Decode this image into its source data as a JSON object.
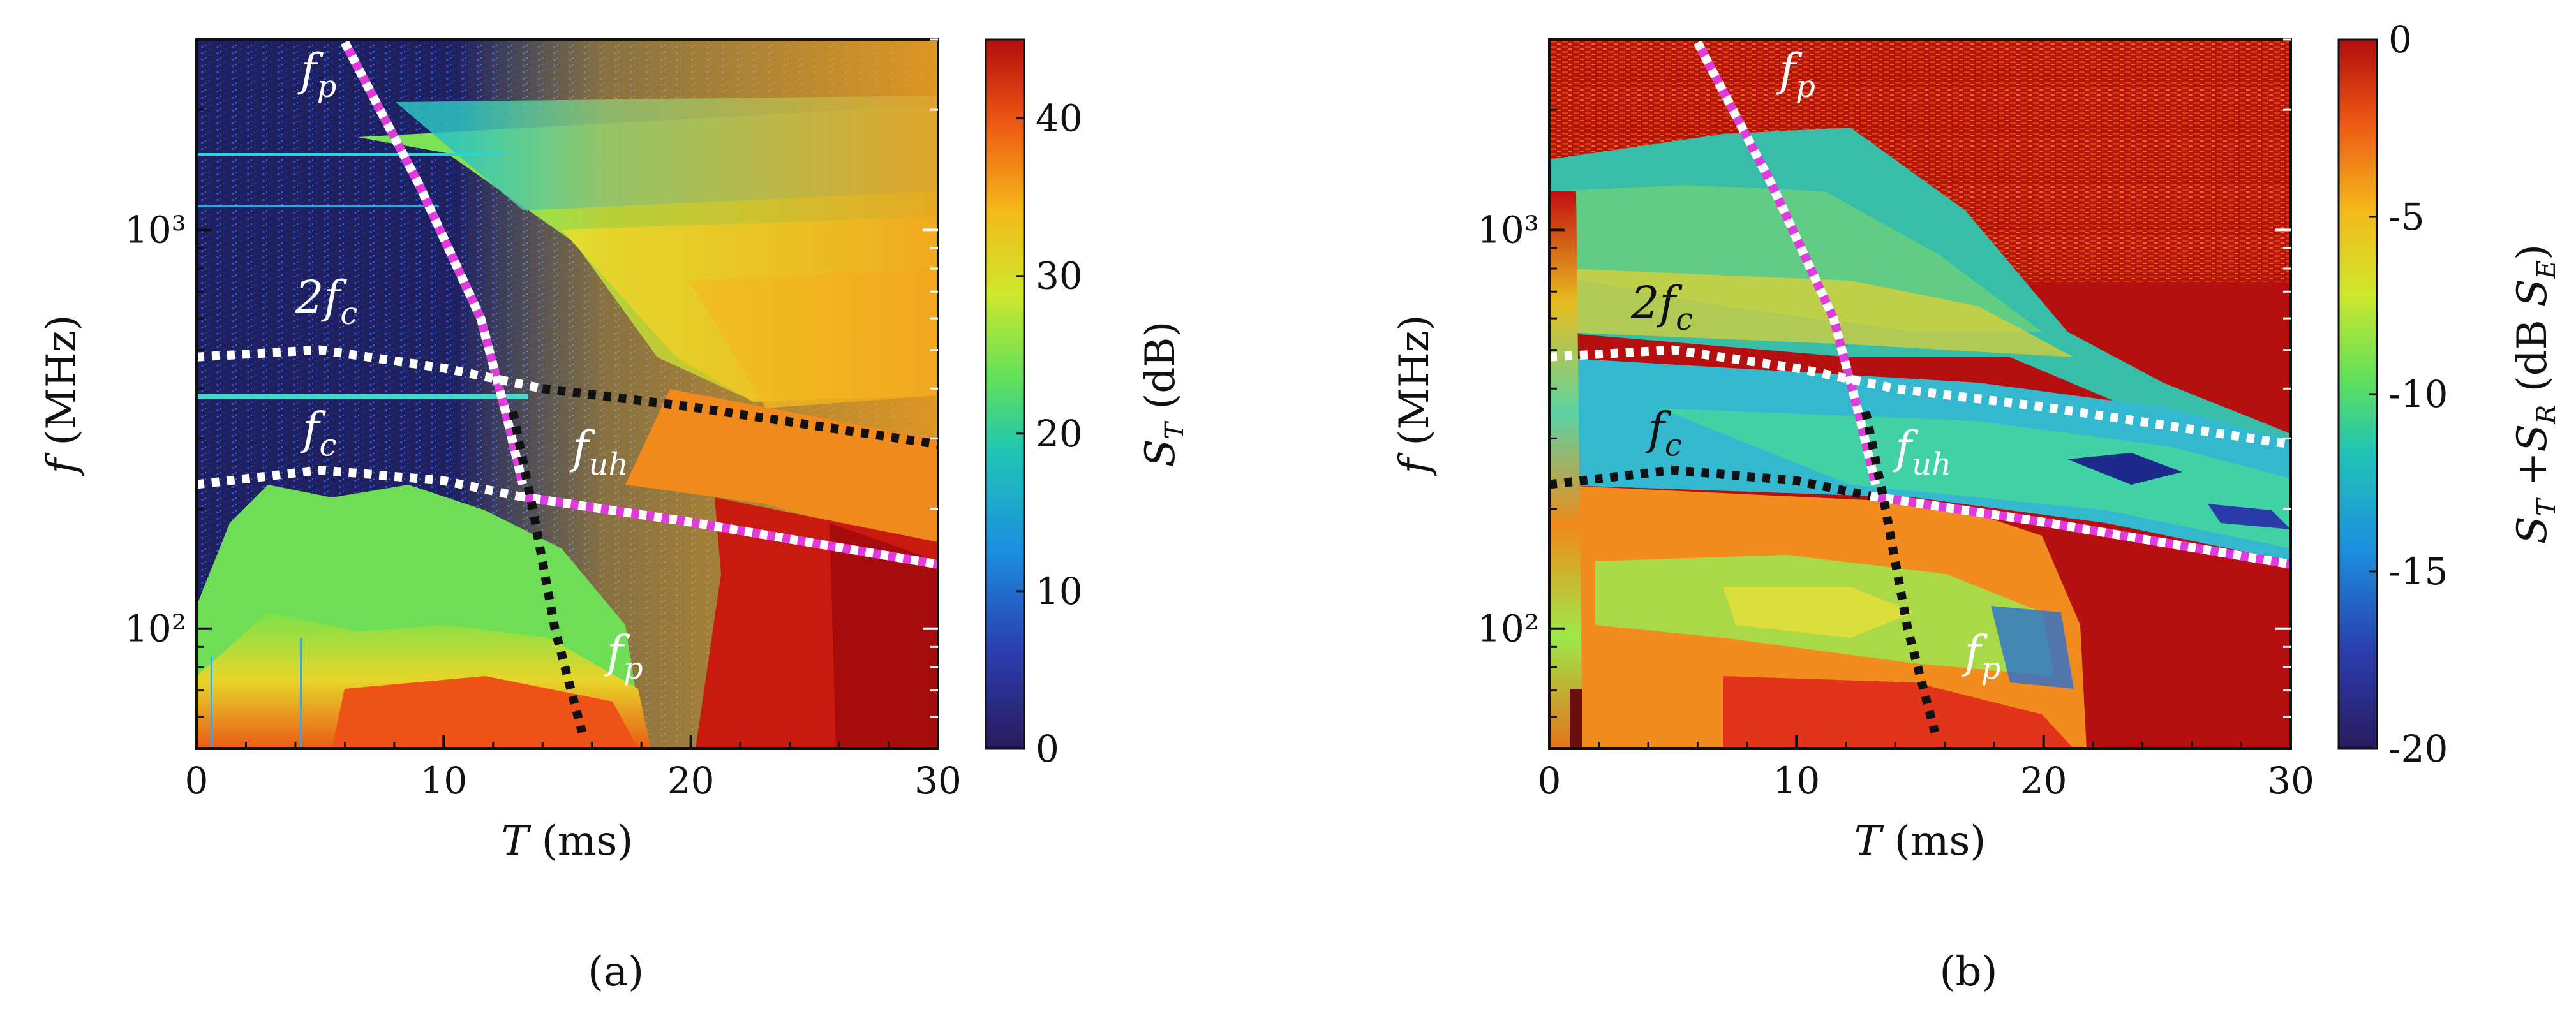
{
  "chart_data": [
    {
      "type": "heatmap",
      "panel": "(a)",
      "xlabel": "T (ms)",
      "ylabel": "f (MHz)",
      "xlim": [
        0,
        30
      ],
      "ylim": [
        50,
        3000
      ],
      "yscale": "log",
      "xticks": [
        "0",
        "10",
        "20",
        "30"
      ],
      "yticks": [
        {
          "value": 100,
          "label": "10²"
        },
        {
          "value": 1000,
          "label": "10³"
        }
      ],
      "colorbar": {
        "label": "S_T (dB)",
        "min": 0,
        "max": 45,
        "ticks": [
          "0",
          "10",
          "20",
          "30",
          "40"
        ]
      },
      "annotations": [
        {
          "text": "f_p",
          "x": 4.2,
          "y": 2300,
          "color": "#ffffff"
        },
        {
          "text": "2f_c",
          "x": 4.0,
          "y": 620,
          "color": "#ffffff"
        },
        {
          "text": "f_c",
          "x": 4.3,
          "y": 290,
          "color": "#ffffff"
        },
        {
          "text": "f_uh",
          "x": 15.2,
          "y": 260,
          "color": "#ffffff"
        },
        {
          "text": "f_p",
          "x": 16.6,
          "y": 80,
          "color": "#ffffff"
        }
      ],
      "curves": [
        {
          "name": "f_p (magenta)",
          "style": "magenta-white",
          "points": [
            [
              6,
              2950
            ],
            [
              9,
              1300
            ],
            [
              11.5,
              600
            ],
            [
              12.5,
              350
            ],
            [
              13.2,
              230
            ]
          ]
        },
        {
          "name": "2f_c",
          "style": "white",
          "points": [
            [
              0,
              480
            ],
            [
              5,
              500
            ],
            [
              10,
              450
            ],
            [
              14,
              400
            ]
          ]
        },
        {
          "name": "2f_c continuation",
          "style": "black",
          "points": [
            [
              14,
              400
            ],
            [
              20,
              360
            ],
            [
              30,
              290
            ]
          ]
        },
        {
          "name": "f_c",
          "style": "white",
          "points": [
            [
              0,
              230
            ],
            [
              5,
              250
            ],
            [
              10,
              235
            ],
            [
              13,
              215
            ]
          ]
        },
        {
          "name": "f_uh",
          "style": "magenta-white",
          "points": [
            [
              13,
              215
            ],
            [
              20,
              185
            ],
            [
              30,
              145
            ]
          ]
        },
        {
          "name": "f_p (black)",
          "style": "black",
          "points": [
            [
              12.8,
              350
            ],
            [
              13.6,
              200
            ],
            [
              14.5,
              100
            ],
            [
              15.6,
              55
            ]
          ]
        }
      ]
    },
    {
      "type": "heatmap",
      "panel": "(b)",
      "xlabel": "T (ms)",
      "ylabel": "f (MHz)",
      "xlim": [
        0,
        30
      ],
      "ylim": [
        50,
        3000
      ],
      "yscale": "log",
      "xticks": [
        "0",
        "10",
        "20",
        "30"
      ],
      "yticks": [
        {
          "value": 100,
          "label": "10²"
        },
        {
          "value": 1000,
          "label": "10³"
        }
      ],
      "colorbar": {
        "label": "S_T +S_R (dB S_E)",
        "min": -20,
        "max": 0,
        "ticks": [
          "-20",
          "-15",
          "-10",
          "-5",
          "0"
        ]
      },
      "annotations": [
        {
          "text": "f_p",
          "x": 9.3,
          "y": 2300,
          "color": "#ffffff"
        },
        {
          "text": "2f_c",
          "x": 3.3,
          "y": 600,
          "color": "#111111"
        },
        {
          "text": "f_c",
          "x": 4.0,
          "y": 290,
          "color": "#111111"
        },
        {
          "text": "f_uh",
          "x": 14.0,
          "y": 260,
          "color": "#ffffff"
        },
        {
          "text": "f_p",
          "x": 16.8,
          "y": 80,
          "color": "#ffffff"
        }
      ],
      "curves": [
        {
          "name": "f_p (magenta)",
          "style": "magenta-white",
          "points": [
            [
              6,
              2950
            ],
            [
              9,
              1300
            ],
            [
              11.5,
              600
            ],
            [
              12.5,
              350
            ],
            [
              13.2,
              230
            ]
          ]
        },
        {
          "name": "2f_c",
          "style": "white",
          "points": [
            [
              0,
              480
            ],
            [
              5,
              500
            ],
            [
              10,
              450
            ],
            [
              14,
              400
            ],
            [
              20,
              360
            ],
            [
              30,
              290
            ]
          ]
        },
        {
          "name": "f_c",
          "style": "black",
          "points": [
            [
              0,
              230
            ],
            [
              5,
              250
            ],
            [
              10,
              235
            ],
            [
              13,
              215
            ]
          ]
        },
        {
          "name": "f_uh",
          "style": "magenta-white",
          "points": [
            [
              13,
              215
            ],
            [
              20,
              185
            ],
            [
              30,
              145
            ]
          ]
        },
        {
          "name": "f_p (black)",
          "style": "black",
          "points": [
            [
              12.8,
              350
            ],
            [
              13.6,
              200
            ],
            [
              14.5,
              100
            ],
            [
              15.6,
              55
            ]
          ]
        }
      ]
    }
  ],
  "captions": {
    "a": "(a)",
    "b": "(b)"
  }
}
